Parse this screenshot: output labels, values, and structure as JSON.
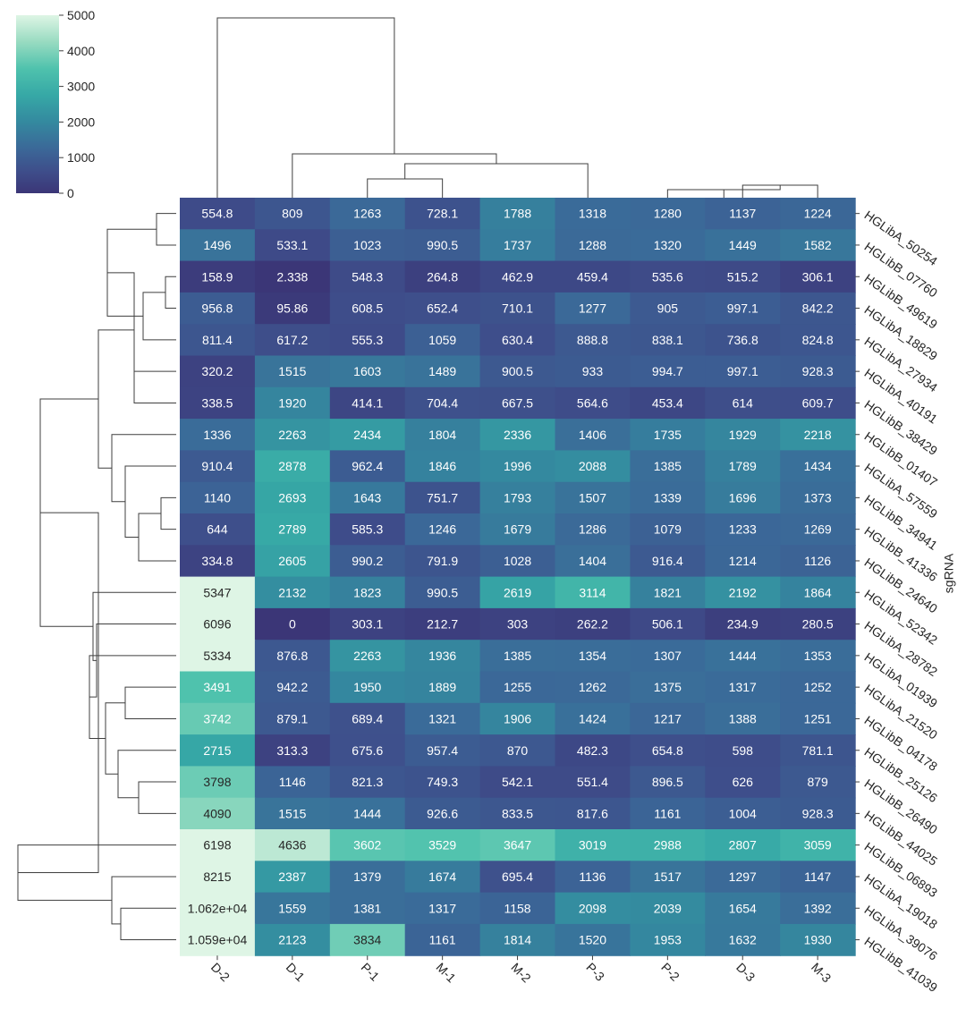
{
  "chart_data": {
    "type": "heatmap",
    "subtype": "clustermap",
    "colormap": "mako-like (dark navy → teal → mint)",
    "color_range": [
      0,
      5000
    ],
    "colorbar": {
      "ticks": [
        0,
        1000,
        2000,
        3000,
        4000,
        5000
      ],
      "tick_labels": [
        "0",
        "1000",
        "2000",
        "3000",
        "4000",
        "5000"
      ]
    },
    "columns": [
      "D-2",
      "D-1",
      "P-1",
      "M-1",
      "M-2",
      "P-3",
      "P-2",
      "D-3",
      "M-3"
    ],
    "rows": [
      "HGLibA_50254",
      "HGLibB_07760",
      "HGLibB_49619",
      "HGLibA_18829",
      "HGLibA_27934",
      "HGLibA_40191",
      "HGLibB_38429",
      "HGLibB_01407",
      "HGLibA_57559",
      "HGLibB_34941",
      "HGLibB_41336",
      "HGLibB_24640",
      "HGLibA_52342",
      "HGLibA_28782",
      "HGLibA_01939",
      "HGLibA_21520",
      "HGLibB_04178",
      "HGLibB_25126",
      "HGLibB_26490",
      "HGLibB_44025",
      "HGLibB_06893",
      "HGLibA_19018",
      "HGLibA_39076",
      "HGLibB_41039"
    ],
    "ylabel": "sgRNA",
    "values": [
      [
        554.8,
        809,
        1263,
        728.1,
        1788,
        1318,
        1280,
        1137,
        1224
      ],
      [
        1496,
        533.1,
        1023,
        990.5,
        1737,
        1288,
        1320,
        1449,
        1582
      ],
      [
        158.9,
        2.338,
        548.3,
        264.8,
        462.9,
        459.4,
        535.6,
        515.2,
        306.1
      ],
      [
        956.8,
        95.86,
        608.5,
        652.4,
        710.1,
        1277,
        905,
        997.1,
        842.2
      ],
      [
        811.4,
        617.2,
        555.3,
        1059,
        630.4,
        888.8,
        838.1,
        736.8,
        824.8
      ],
      [
        320.2,
        1515,
        1603,
        1489,
        900.5,
        933,
        994.7,
        997.1,
        928.3
      ],
      [
        338.5,
        1920,
        414.1,
        704.4,
        667.5,
        564.6,
        453.4,
        614,
        609.7
      ],
      [
        1336,
        2263,
        2434,
        1804,
        2336,
        1406,
        1735,
        1929,
        2218
      ],
      [
        910.4,
        2878,
        962.4,
        1846,
        1996,
        2088,
        1385,
        1789,
        1434
      ],
      [
        1140,
        2693,
        1643,
        751.7,
        1793,
        1507,
        1339,
        1696,
        1373
      ],
      [
        644,
        2789,
        585.3,
        1246,
        1679,
        1286,
        1079,
        1233,
        1269
      ],
      [
        334.8,
        2605,
        990.2,
        791.9,
        1028,
        1404,
        916.4,
        1214,
        1126
      ],
      [
        5347,
        2132,
        1823,
        990.5,
        2619,
        3114,
        1821,
        2192,
        1864
      ],
      [
        6096,
        0,
        303.1,
        212.7,
        303,
        262.2,
        506.1,
        234.9,
        280.5
      ],
      [
        5334,
        876.8,
        2263,
        1936,
        1385,
        1354,
        1307,
        1444,
        1353
      ],
      [
        3491,
        942.2,
        1950,
        1889,
        1255,
        1262,
        1375,
        1317,
        1252
      ],
      [
        3742,
        879.1,
        689.4,
        1321,
        1906,
        1424,
        1217,
        1388,
        1251
      ],
      [
        2715,
        313.3,
        675.6,
        957.4,
        870,
        482.3,
        654.8,
        598,
        781.1
      ],
      [
        3798,
        1146,
        821.3,
        749.3,
        542.1,
        551.4,
        896.5,
        626,
        879
      ],
      [
        4090,
        1515,
        1444,
        926.6,
        833.5,
        817.6,
        1161,
        1004,
        928.3
      ],
      [
        6198,
        4636,
        3602,
        3529,
        3647,
        3019,
        2988,
        2807,
        3059
      ],
      [
        8215,
        2387,
        1379,
        1674,
        695.4,
        1136,
        1517,
        1297,
        1147
      ],
      [
        10620,
        1559,
        1381,
        1317,
        1158,
        2098,
        2039,
        1654,
        1392
      ],
      [
        10590,
        2123,
        3834,
        1161,
        1814,
        1520,
        1953,
        1632,
        1930
      ]
    ],
    "cell_labels": [
      [
        "554.8",
        "809",
        "1263",
        "728.1",
        "1788",
        "1318",
        "1280",
        "1137",
        "1224"
      ],
      [
        "1496",
        "533.1",
        "1023",
        "990.5",
        "1737",
        "1288",
        "1320",
        "1449",
        "1582"
      ],
      [
        "158.9",
        "2.338",
        "548.3",
        "264.8",
        "462.9",
        "459.4",
        "535.6",
        "515.2",
        "306.1"
      ],
      [
        "956.8",
        "95.86",
        "608.5",
        "652.4",
        "710.1",
        "1277",
        "905",
        "997.1",
        "842.2"
      ],
      [
        "811.4",
        "617.2",
        "555.3",
        "1059",
        "630.4",
        "888.8",
        "838.1",
        "736.8",
        "824.8"
      ],
      [
        "320.2",
        "1515",
        "1603",
        "1489",
        "900.5",
        "933",
        "994.7",
        "997.1",
        "928.3"
      ],
      [
        "338.5",
        "1920",
        "414.1",
        "704.4",
        "667.5",
        "564.6",
        "453.4",
        "614",
        "609.7"
      ],
      [
        "1336",
        "2263",
        "2434",
        "1804",
        "2336",
        "1406",
        "1735",
        "1929",
        "2218"
      ],
      [
        "910.4",
        "2878",
        "962.4",
        "1846",
        "1996",
        "2088",
        "1385",
        "1789",
        "1434"
      ],
      [
        "1140",
        "2693",
        "1643",
        "751.7",
        "1793",
        "1507",
        "1339",
        "1696",
        "1373"
      ],
      [
        "644",
        "2789",
        "585.3",
        "1246",
        "1679",
        "1286",
        "1079",
        "1233",
        "1269"
      ],
      [
        "334.8",
        "2605",
        "990.2",
        "791.9",
        "1028",
        "1404",
        "916.4",
        "1214",
        "1126"
      ],
      [
        "5347",
        "2132",
        "1823",
        "990.5",
        "2619",
        "3114",
        "1821",
        "2192",
        "1864"
      ],
      [
        "6096",
        "0",
        "303.1",
        "212.7",
        "303",
        "262.2",
        "506.1",
        "234.9",
        "280.5"
      ],
      [
        "5334",
        "876.8",
        "2263",
        "1936",
        "1385",
        "1354",
        "1307",
        "1444",
        "1353"
      ],
      [
        "3491",
        "942.2",
        "1950",
        "1889",
        "1255",
        "1262",
        "1375",
        "1317",
        "1252"
      ],
      [
        "3742",
        "879.1",
        "689.4",
        "1321",
        "1906",
        "1424",
        "1217",
        "1388",
        "1251"
      ],
      [
        "2715",
        "313.3",
        "675.6",
        "957.4",
        "870",
        "482.3",
        "654.8",
        "598",
        "781.1"
      ],
      [
        "3798",
        "1146",
        "821.3",
        "749.3",
        "542.1",
        "551.4",
        "896.5",
        "626",
        "879"
      ],
      [
        "4090",
        "1515",
        "1444",
        "926.6",
        "833.5",
        "817.6",
        "1161",
        "1004",
        "928.3"
      ],
      [
        "6198",
        "4636",
        "3602",
        "3529",
        "3647",
        "3019",
        "2988",
        "2807",
        "3059"
      ],
      [
        "8215",
        "2387",
        "1379",
        "1674",
        "695.4",
        "1136",
        "1517",
        "1297",
        "1147"
      ],
      [
        "1.062e+04",
        "1559",
        "1381",
        "1317",
        "1158",
        "2098",
        "2039",
        "1654",
        "1392"
      ],
      [
        "1.059e+04",
        "2123",
        "3834",
        "1161",
        "1814",
        "1520",
        "1953",
        "1632",
        "1930"
      ]
    ],
    "col_dendrogram_merges": [
      [
        7,
        8
      ],
      [
        6,
        9
      ],
      [
        5,
        10
      ],
      [
        4,
        11
      ],
      [
        2,
        3
      ],
      [
        12,
        13
      ],
      [
        1,
        14
      ],
      [
        0,
        15
      ]
    ],
    "row_dendrogram_merges": [
      [
        0,
        1
      ],
      [
        2,
        3
      ],
      [
        4,
        25
      ],
      [
        5,
        6
      ],
      [
        24,
        26
      ],
      [
        27,
        28
      ],
      [
        9,
        10
      ],
      [
        30,
        11
      ],
      [
        8,
        31
      ],
      [
        7,
        32
      ],
      [
        29,
        33
      ],
      [
        15,
        16
      ],
      [
        18,
        19
      ],
      [
        17,
        36
      ],
      [
        35,
        37
      ],
      [
        14,
        38
      ],
      [
        13,
        39
      ],
      [
        12,
        40
      ],
      [
        22,
        23
      ],
      [
        21,
        42
      ],
      [
        20,
        43
      ],
      [
        34,
        41
      ],
      [
        44,
        45
      ]
    ]
  }
}
